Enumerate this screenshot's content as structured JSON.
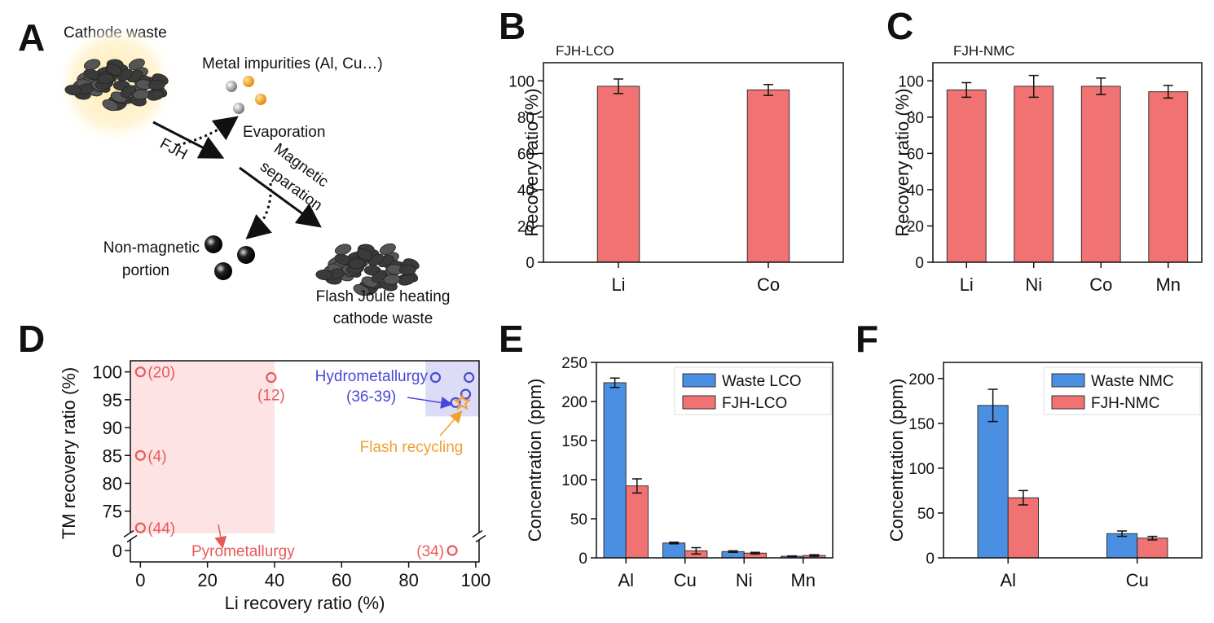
{
  "diagram": {
    "panel": "A",
    "cathode_waste": "Cathode waste",
    "metal_impurities": "Metal impurities (Al, Cu…)",
    "evaporation": "Evaporation",
    "fjh": "FJH",
    "magnetic_separation": [
      "Magnetic",
      "separation"
    ],
    "non_magnetic": [
      "Non-magnetic",
      "portion"
    ],
    "product": [
      "Flash Joule heating",
      "cathode waste"
    ]
  },
  "chart_data": [
    {
      "panel": "B",
      "type": "bar",
      "title": "FJH-LCO",
      "y_label": "Recovery ratio (%)",
      "categories": [
        "Li",
        "Co"
      ],
      "values": [
        97,
        95
      ],
      "errors": [
        4,
        3
      ],
      "color": "#f07272",
      "ylim": [
        0,
        110
      ],
      "yticks": [
        0,
        20,
        40,
        60,
        80,
        100
      ]
    },
    {
      "panel": "C",
      "type": "bar",
      "title": "FJH-NMC",
      "y_label": "Recovery ratio (%)",
      "categories": [
        "Li",
        "Ni",
        "Co",
        "Mn"
      ],
      "values": [
        95,
        97,
        97,
        94
      ],
      "errors": [
        4,
        6,
        4.5,
        3.5
      ],
      "color": "#f07272",
      "ylim": [
        0,
        110
      ],
      "yticks": [
        0,
        20,
        40,
        60,
        80,
        100
      ]
    },
    {
      "panel": "D",
      "type": "scatter",
      "x_label": "Li recovery ratio (%)",
      "y_label": "TM recovery ratio (%)",
      "xlim": [
        -3,
        101
      ],
      "xticks": [
        0,
        20,
        40,
        60,
        80,
        100
      ],
      "ylim": [
        -2,
        102
      ],
      "ybreak": [
        2,
        71
      ],
      "yticks": [
        0,
        75,
        80,
        85,
        90,
        95,
        100
      ],
      "regions": [
        {
          "name": "Pyrometallurgy",
          "color": "#fde3e3",
          "xlim": [
            -3,
            40
          ],
          "ylim": [
            71,
            102
          ]
        },
        {
          "name": "Hydrometallurgy",
          "color": "#dcdcf6",
          "xlim": [
            85,
            101
          ],
          "ylim": [
            92,
            102
          ]
        }
      ],
      "series": [
        {
          "name": "Pyrometallurgy",
          "color": "#e85a5a",
          "marker": "circle",
          "x": [
            0,
            39,
            0,
            0,
            93
          ],
          "values": [
            100,
            99,
            85,
            72,
            0
          ],
          "labels": [
            "(20)",
            "(12)",
            "(4)",
            "(44)",
            "(34)"
          ]
        },
        {
          "name": "Hydrometallurgy",
          "color": "#4848d8",
          "marker": "circle",
          "x": [
            88,
            98,
            97,
            94
          ],
          "values": [
            99,
            99,
            96,
            94.5
          ],
          "group_label": "(36-39)"
        },
        {
          "name": "Flash recycling",
          "color": "#f0a030",
          "marker": "star",
          "x": [
            96
          ],
          "values": [
            94.5
          ]
        }
      ]
    },
    {
      "panel": "E",
      "type": "bar",
      "y_label": "Concentration (ppm)",
      "categories": [
        "Al",
        "Cu",
        "Ni",
        "Mn"
      ],
      "series": [
        {
          "name": "Waste LCO",
          "color": "#4a8fe2",
          "values": [
            224,
            19,
            8,
            2
          ],
          "errors": [
            6,
            1,
            1,
            0.5
          ]
        },
        {
          "name": "FJH-LCO",
          "color": "#f07272",
          "values": [
            92,
            9,
            6,
            3
          ],
          "errors": [
            9,
            4,
            1,
            1
          ]
        }
      ],
      "ylim": [
        0,
        250
      ],
      "yticks": [
        0,
        50,
        100,
        150,
        200,
        250
      ],
      "legend": "upper right"
    },
    {
      "panel": "F",
      "type": "bar",
      "y_label": "Concentration (ppm)",
      "categories": [
        "Al",
        "Cu"
      ],
      "series": [
        {
          "name": "Waste NMC",
          "color": "#4a8fe2",
          "values": [
            170,
            27
          ],
          "errors": [
            18,
            3
          ]
        },
        {
          "name": "FJH-NMC",
          "color": "#f07272",
          "values": [
            67,
            22
          ],
          "errors": [
            8,
            2
          ]
        }
      ],
      "ylim": [
        0,
        218
      ],
      "yticks": [
        0,
        50,
        100,
        150,
        200
      ],
      "legend": "upper right"
    }
  ]
}
